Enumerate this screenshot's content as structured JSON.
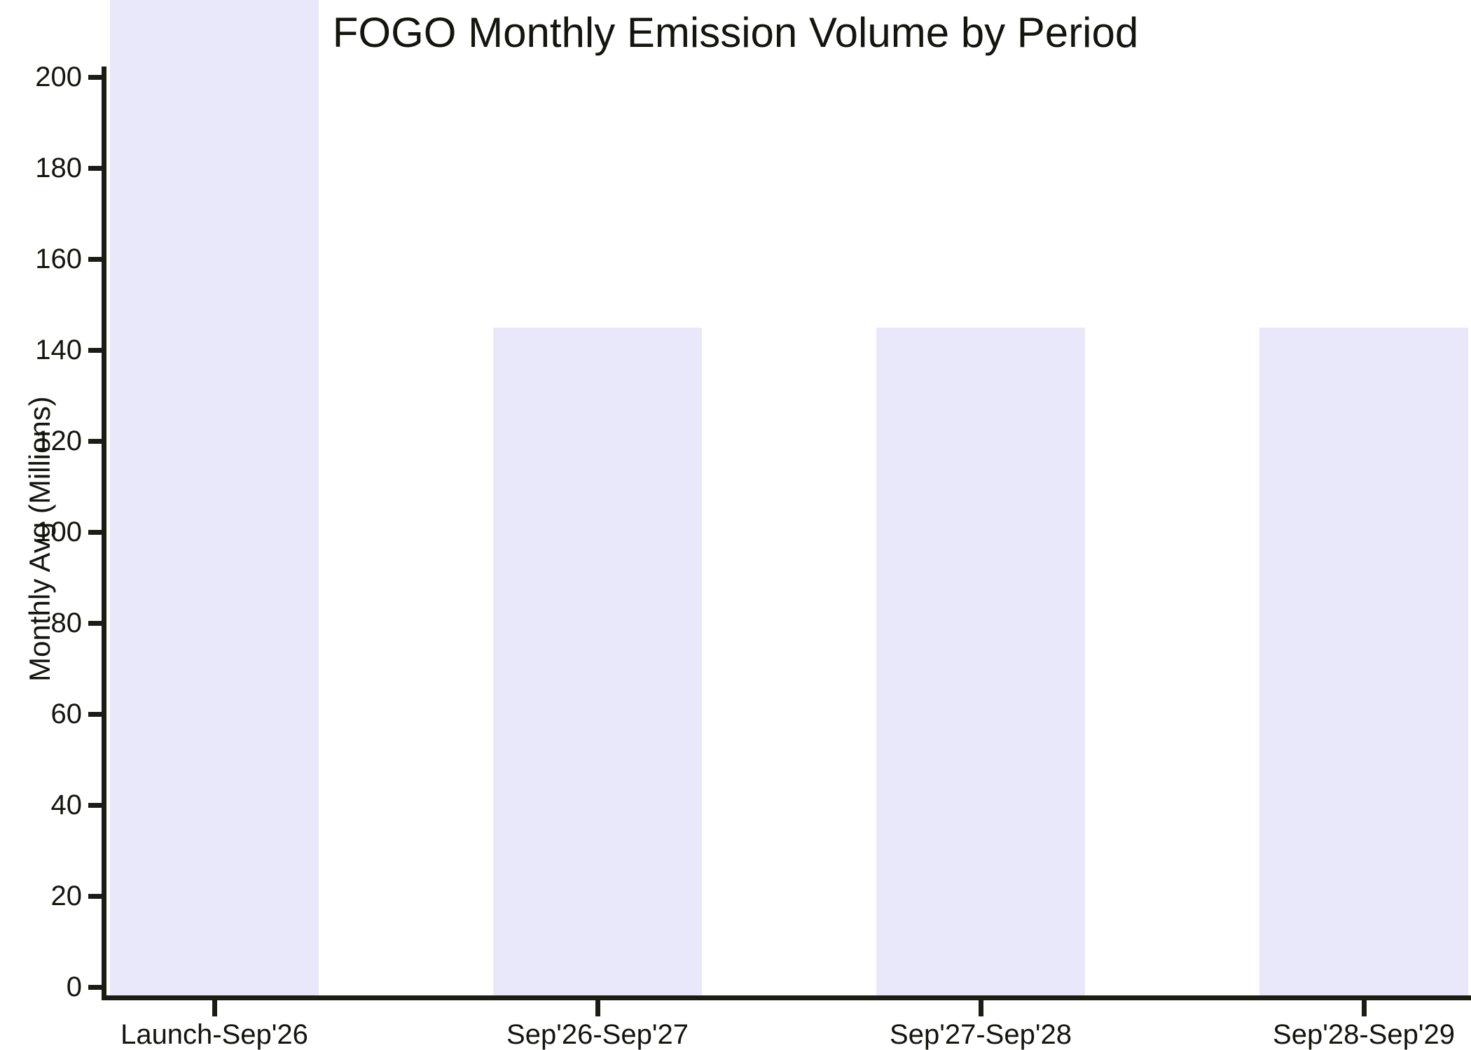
{
  "chart_data": {
    "type": "bar",
    "title": "FOGO Monthly Emission Volume by Period",
    "xlabel": "",
    "ylabel": "Monthly Avg (Millions)",
    "categories": [
      "Launch-Sep'26",
      "Sep'26-Sep'27",
      "Sep'27-Sep'28",
      "Sep'28-Sep'29"
    ],
    "values": [
      220,
      145,
      145,
      145
    ],
    "bars_clipped_at_top": [
      true,
      false,
      false,
      false
    ],
    "note": "The first bar overflows the y-axis range and is cut off by the top edge of the image; its visible height corresponds to at least ~217 (value above 200 axis max). Bars 2-4 read 145.",
    "yticks": [
      0,
      20,
      40,
      60,
      80,
      100,
      120,
      140,
      160,
      180,
      200
    ],
    "ylim": [
      0,
      200
    ],
    "grid": false,
    "legend": false,
    "bar_color": "#e8e8fa",
    "axis_color": "#1c1c14",
    "text_color": "#15150e",
    "background": "#ffffff"
  }
}
